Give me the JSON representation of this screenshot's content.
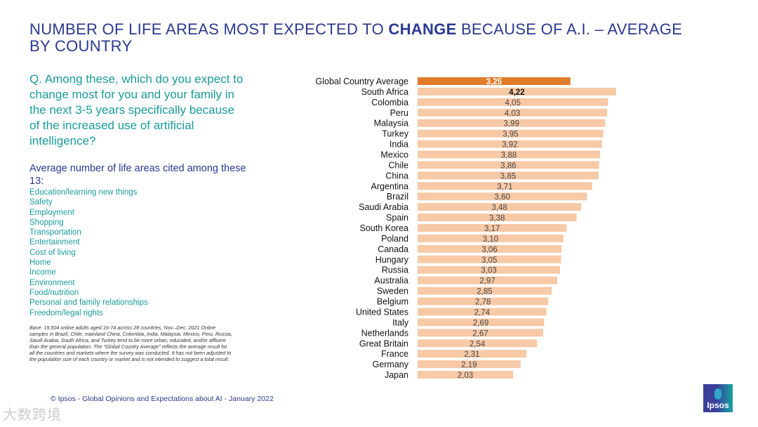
{
  "title": {
    "part1": "NUMBER OF LIFE AREAS MOST EXPECTED TO ",
    "bold": "CHANGE",
    "part2": " BECAUSE OF A.I. – AVERAGE BY COUNTRY"
  },
  "question": "Q. Among these, which do you expect to change most for you and your family in the next 3-5 years specifically because of the increased use of artificial intelligence?",
  "average_label": "Average number of life areas cited among these 13:",
  "life_areas": [
    "Education/learning new things",
    "Safety",
    "Employment",
    "Shopping",
    "Transportation",
    "Entertainment",
    "Cost of living",
    "Home",
    "Income",
    "Environment",
    "Food/nutrition",
    "Personal and family relationships",
    "Freedom/legal rights"
  ],
  "base_note": "Base: 19,504 online adults aged 16-74 across 28 countries, Nov.–Dec. 2021 Online samples in Brazil, Chile, mainland China, Colombia, India, Malaysia, Mexico, Peru, Russia, Saudi Arabia, South Africa, and Turkey tend to be more urban, educated, and/or affluent than the general population. The “Global Country Average” reflects the average result for all the countries and markets where the survey was conducted. It has not been adjusted to the population size of each country or market and is not intended to suggest a total result.",
  "footer": "© Ipsos - Global Opinions and Expectations about AI - January 2022",
  "logo_text": "Ipsos",
  "watermark": "大数跨境",
  "colors": {
    "highlight": "#e07b2a",
    "bar": "#f7c9a6",
    "title": "#2b3990",
    "teal": "#1a9b9b"
  },
  "chart_data": {
    "type": "bar",
    "orientation": "horizontal",
    "title": "",
    "xlabel": "",
    "ylabel": "",
    "xlim": [
      0,
      4.22
    ],
    "grid": false,
    "categories": [
      "Global Country Average",
      "South Africa",
      "Colombia",
      "Peru",
      "Malaysia",
      "Turkey",
      "India",
      "Mexico",
      "Chile",
      "China",
      "Argentina",
      "Brazil",
      "Saudi Arabia",
      "Spain",
      "South Korea",
      "Poland",
      "Canada",
      "Hungary",
      "Russia",
      "Australia",
      "Sweden",
      "Belgium",
      "United States",
      "Italy",
      "Netherlands",
      "Great Britain",
      "France",
      "Germany",
      "Japan"
    ],
    "values": [
      3.25,
      4.22,
      4.05,
      4.03,
      3.99,
      3.95,
      3.92,
      3.88,
      3.86,
      3.85,
      3.71,
      3.6,
      3.48,
      3.38,
      3.17,
      3.1,
      3.06,
      3.05,
      3.03,
      2.97,
      2.85,
      2.78,
      2.74,
      2.69,
      2.67,
      2.54,
      2.31,
      2.19,
      2.03
    ],
    "labels": [
      "3,25",
      "4,22",
      "4,05",
      "4,03",
      "3,99",
      "3,95",
      "3,92",
      "3,88",
      "3,86",
      "3,85",
      "3,71",
      "3,60",
      "3,48",
      "3,38",
      "3,17",
      "3,10",
      "3,06",
      "3,05",
      "3,03",
      "2,97",
      "2,85",
      "2,78",
      "2,74",
      "2,69",
      "2,67",
      "2,54",
      "2,31",
      "2,19",
      "2,03"
    ]
  }
}
